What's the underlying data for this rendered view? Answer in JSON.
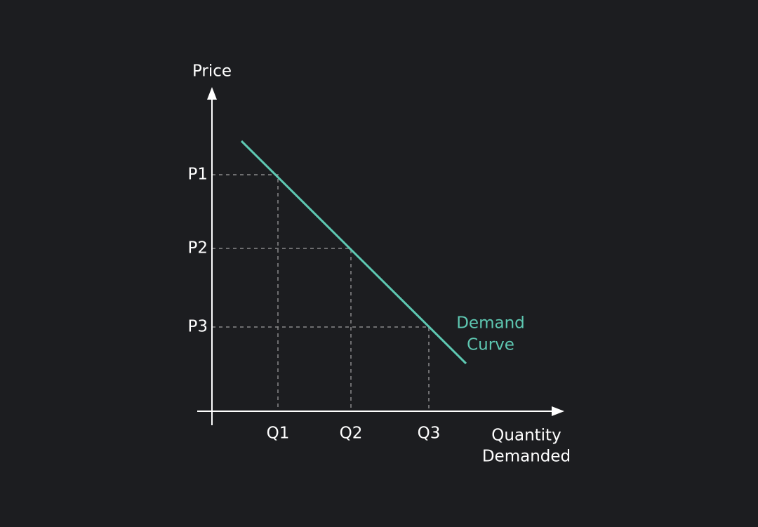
{
  "axes": {
    "y_label": "Price",
    "x_label": [
      "Quantity",
      "Demanded"
    ]
  },
  "price_levels": [
    "P1",
    "P2",
    "P3"
  ],
  "quantity_levels": [
    "Q1",
    "Q2",
    "Q3"
  ],
  "curve_label": [
    "Demand",
    "Curve"
  ]
}
